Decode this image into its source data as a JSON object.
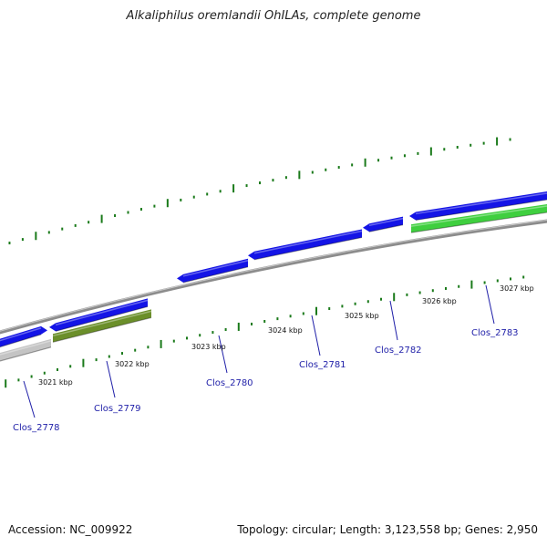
{
  "title": "Alkaliphilus oremlandii OhILAs, complete genome",
  "footer": {
    "accession": "Accession: NC_009922",
    "summary": "Topology: circular; Length: 3,123,558 bp; Genes: 2,950"
  },
  "colors": {
    "backbone": "#8c8c8c",
    "forward_gene": "#1414e6",
    "reverse_gene_green": "#3fcf3f",
    "reverse_gene_olive": "#6b8f2a",
    "reverse_gene_gray": "#c4c4c4",
    "tick": "#1a7a1a",
    "gene_label": "#1f1fa8"
  },
  "scale_ticks": [
    {
      "label": "3021 kbp"
    },
    {
      "label": "3022 kbp"
    },
    {
      "label": "3023 kbp"
    },
    {
      "label": "3024 kbp"
    },
    {
      "label": "3025 kbp"
    },
    {
      "label": "3026 kbp"
    },
    {
      "label": "3027 kbp"
    }
  ],
  "genes": [
    {
      "id": "Clos_2778",
      "strand": "forward",
      "color": "forward_gene"
    },
    {
      "id": "Clos_2778-rev",
      "strand": "reverse",
      "color": "reverse_gene_gray"
    },
    {
      "id": "Clos_2779-fwd",
      "strand": "forward",
      "color": "forward_gene"
    },
    {
      "id": "Clos_2779",
      "strand": "reverse",
      "color": "reverse_gene_olive"
    },
    {
      "id": "Clos_2780",
      "strand": "forward",
      "color": "forward_gene"
    },
    {
      "id": "Clos_2781",
      "strand": "forward",
      "color": "forward_gene"
    },
    {
      "id": "Clos_2782",
      "strand": "forward",
      "color": "forward_gene"
    },
    {
      "id": "Clos_2783-fwd",
      "strand": "forward",
      "color": "forward_gene"
    },
    {
      "id": "Clos_2783",
      "strand": "reverse",
      "color": "reverse_gene_green"
    }
  ],
  "gene_labels": [
    {
      "text": "Clos_2778"
    },
    {
      "text": "Clos_2779"
    },
    {
      "text": "Clos_2780"
    },
    {
      "text": "Clos_2781"
    },
    {
      "text": "Clos_2782"
    },
    {
      "text": "Clos_2783"
    }
  ]
}
